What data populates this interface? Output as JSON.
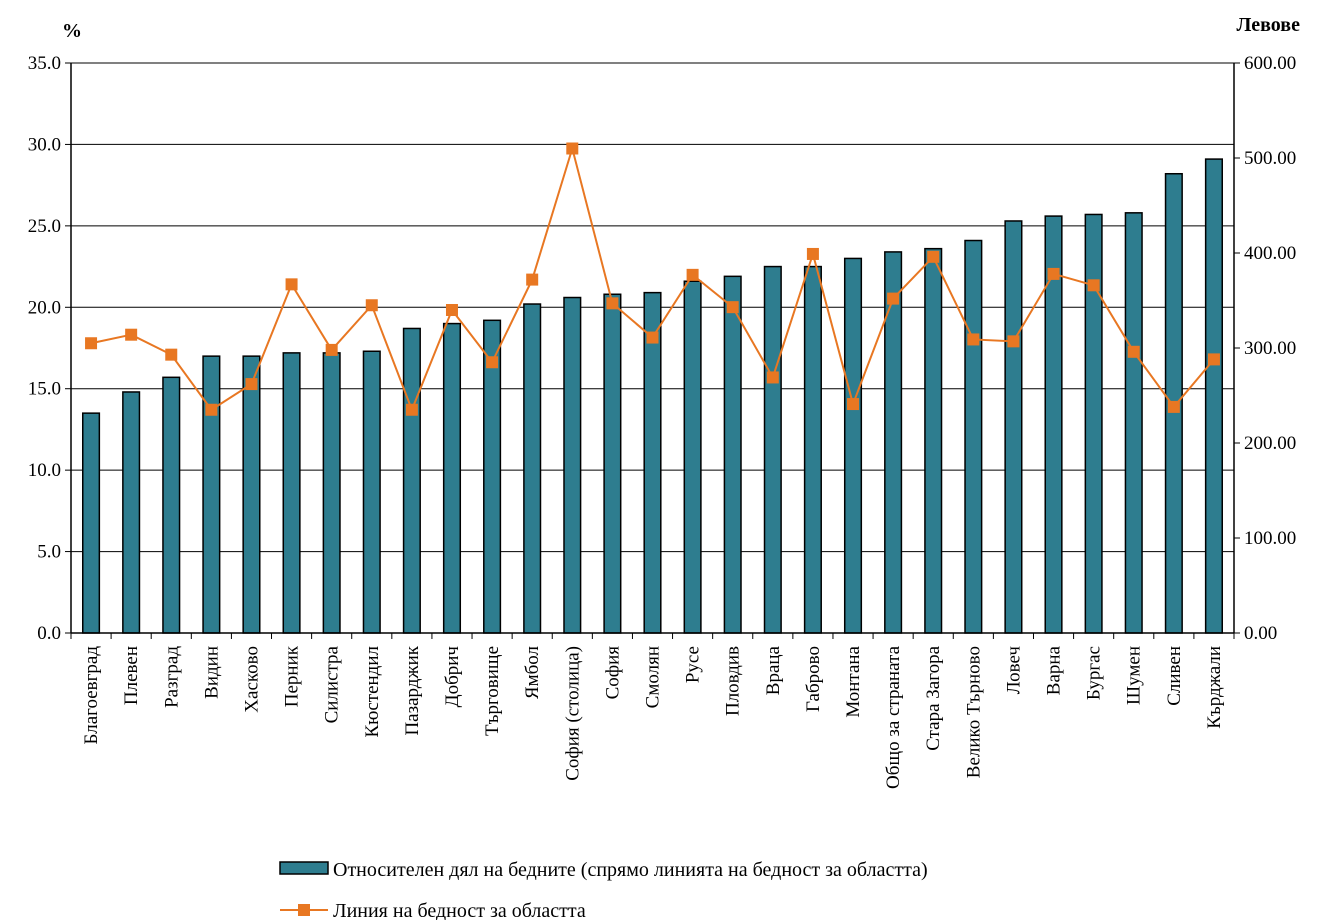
{
  "chart_data": {
    "type": "bar",
    "left_unit": "%",
    "right_unit": "Левове",
    "categories": [
      "Благоевград",
      "Плевен",
      "Разград",
      "Видин",
      "Хасково",
      "Перник",
      "Силистра",
      "Кюстендил",
      "Пазарджик",
      "Добрич",
      "Търговище",
      "Ямбол",
      "София (столица)",
      "София",
      "Смолян",
      "Русе",
      "Пловдив",
      "Враца",
      "Габрово",
      "Монтана",
      "Общо за страната",
      "Стара Загора",
      "Велико Търново",
      "Ловеч",
      "Варна",
      "Бургас",
      "Шумен",
      "Сливен",
      "Кърджали"
    ],
    "series": [
      {
        "name": "Относителен дял на бедните (спрямо линията на бедност за областта)",
        "type": "bar",
        "axis": "left",
        "color": "#2e7d8f",
        "values": [
          13.5,
          14.8,
          15.7,
          17.0,
          17.0,
          17.2,
          17.2,
          17.3,
          18.7,
          19.0,
          19.2,
          20.2,
          20.6,
          20.8,
          20.9,
          21.6,
          21.9,
          22.5,
          22.5,
          23.0,
          23.4,
          23.6,
          24.1,
          25.3,
          25.6,
          25.7,
          25.8,
          28.2,
          29.1
        ]
      },
      {
        "name": "Линия на бедност за областта",
        "type": "line",
        "axis": "right",
        "color": "#e87722",
        "values": [
          305,
          314,
          293,
          235,
          262,
          367,
          298,
          345,
          235,
          340,
          285,
          372,
          510,
          347,
          311,
          377,
          343,
          269,
          399,
          241,
          352,
          396,
          309,
          307,
          378,
          366,
          296,
          238,
          288
        ]
      }
    ],
    "left_axis": {
      "min": 0,
      "max": 35,
      "step": 5,
      "tick_labels": [
        "0.0",
        "5.0",
        "10.0",
        "15.0",
        "20.0",
        "25.0",
        "30.0",
        "35.0"
      ]
    },
    "right_axis": {
      "min": 0,
      "max": 600,
      "step": 100,
      "tick_labels": [
        "0.00",
        "100.00",
        "200.00",
        "300.00",
        "400.00",
        "500.00",
        "600.00"
      ]
    },
    "grid": true,
    "legend_position": "bottom"
  }
}
